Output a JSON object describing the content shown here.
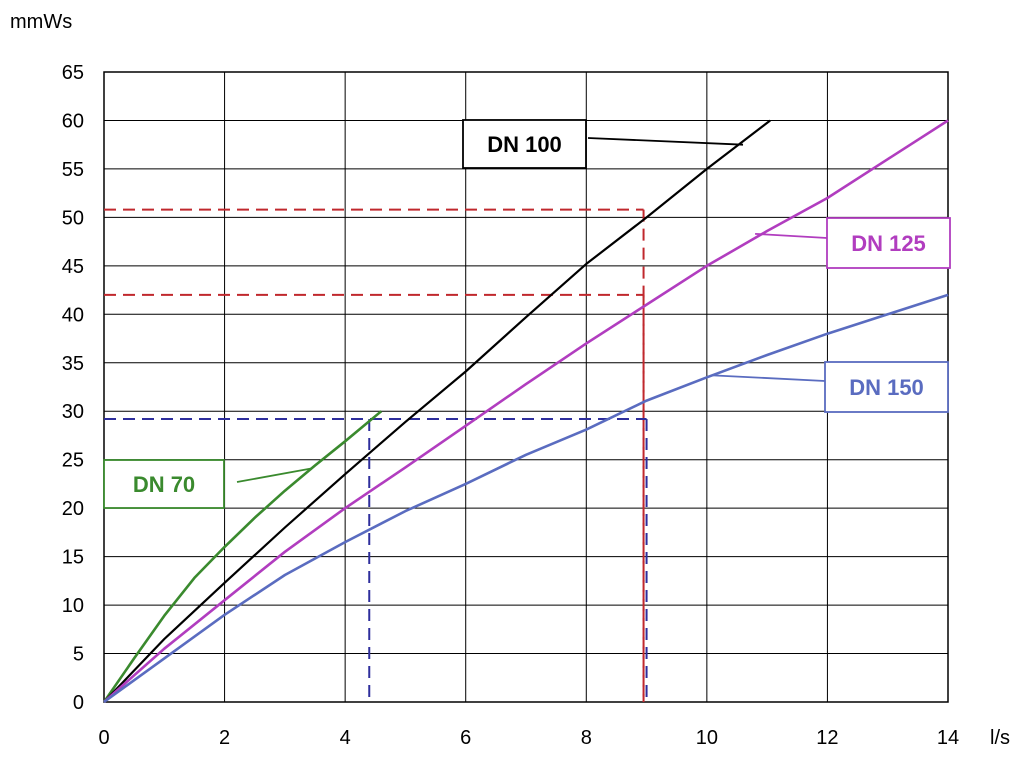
{
  "chart_data": {
    "type": "line",
    "y_unit": "mmWs",
    "x_unit": "l/s",
    "xlim": [
      0,
      14
    ],
    "ylim": [
      0,
      65
    ],
    "x_ticks": [
      "0",
      "2",
      "4",
      "6",
      "8",
      "10",
      "12",
      "14"
    ],
    "y_ticks": [
      "0",
      "5",
      "10",
      "15",
      "20",
      "25",
      "30",
      "35",
      "40",
      "45",
      "50",
      "55",
      "60",
      "65"
    ],
    "grid": true,
    "series": [
      {
        "name": "DN 70",
        "color": "#3a8a2e",
        "x": [
          0,
          0.5,
          1,
          1.5,
          2,
          2.5,
          3,
          3.5,
          4,
          4.6
        ],
        "y": [
          0,
          4.5,
          8.9,
          12.8,
          16,
          19,
          21.8,
          24.4,
          26.9,
          30
        ]
      },
      {
        "name": "DN 100",
        "color": "#000000",
        "x": [
          0,
          1,
          2,
          3,
          4,
          5,
          6,
          7,
          8,
          9,
          10,
          11.05
        ],
        "y": [
          0,
          6.5,
          12.3,
          18,
          23.5,
          28.9,
          34.1,
          39.7,
          45.2,
          50,
          55,
          60
        ]
      },
      {
        "name": "DN 125",
        "color": "#b13dbf",
        "x": [
          0,
          1,
          2,
          3,
          4,
          5,
          6,
          7,
          8,
          9,
          10,
          11,
          12,
          13,
          14
        ],
        "y": [
          0,
          5.5,
          10.5,
          15.5,
          20,
          24.2,
          28.5,
          32.8,
          37,
          41,
          45,
          48.6,
          52,
          56,
          60
        ]
      },
      {
        "name": "DN 150",
        "color": "#5a6cc0",
        "x": [
          0,
          1,
          2,
          3,
          4,
          5,
          6,
          7,
          8,
          9,
          10,
          11,
          12,
          13,
          14
        ],
        "y": [
          0,
          4.5,
          9,
          13.1,
          16.5,
          19.7,
          22.5,
          25.5,
          28.1,
          31.1,
          33.5,
          35.8,
          38,
          40,
          42
        ]
      }
    ],
    "reference_lines": [
      {
        "color": "#c0282d",
        "x": 8.95,
        "y": 50.8
      },
      {
        "color": "#c0282d",
        "x": 8.95,
        "y": 42
      },
      {
        "color": "#2e2e9c",
        "x": 4.4,
        "y": 29.2
      },
      {
        "color": "#2e2e9c",
        "x": 9.0,
        "y": 29.2
      }
    ],
    "annotations": [
      {
        "text": "DN 100",
        "series": "DN 100",
        "color": "#000000",
        "at_x": 10.6,
        "at_y": 57.5
      },
      {
        "text": "DN 125",
        "series": "DN 125",
        "color": "#b13dbf",
        "at_x": 10.8,
        "at_y": 48.3
      },
      {
        "text": "DN 150",
        "series": "DN 150",
        "color": "#5a6cc0",
        "at_x": 10.1,
        "at_y": 33.7
      },
      {
        "text": "DN 70",
        "series": "DN 70",
        "color": "#3a8a2e",
        "at_x": 3.45,
        "at_y": 24.1
      }
    ]
  }
}
